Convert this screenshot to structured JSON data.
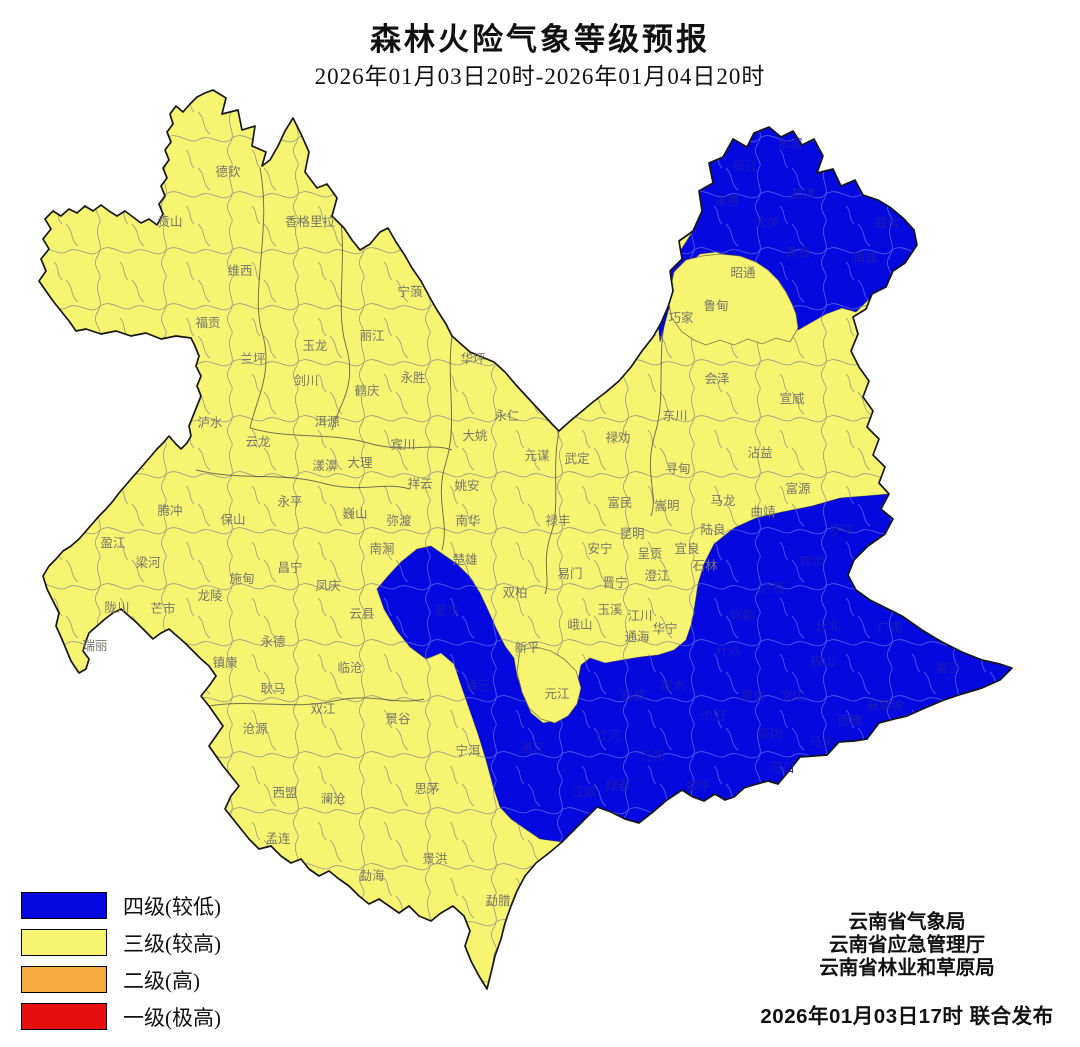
{
  "header": {
    "title": "森林火险气象等级预报",
    "subtitle": "2026年01月03日20时-2026年01月04日20时"
  },
  "legend": {
    "items": [
      {
        "label": "四级(较低)",
        "color": "#0509E0"
      },
      {
        "label": "三级(较高)",
        "color": "#F7F472"
      },
      {
        "label": "二级(高)",
        "color": "#F5A93F"
      },
      {
        "label": "一级(极高)",
        "color": "#E60E0E"
      }
    ]
  },
  "footer": {
    "agencies": [
      "云南省气象局",
      "云南省应急管理厅",
      "云南省林业和草原局"
    ],
    "issued": "2026年01月03日17时  联合发布"
  },
  "colors": {
    "level4_blue": "#0509E0",
    "level3_yellow": "#F7F472",
    "level2_orange": "#F5A93F",
    "level1_red": "#E60E0E",
    "outline": "#161616",
    "county_line": "#9a9a85",
    "county_line_blue": "#5b6ae8",
    "label_yellow": "#75786a",
    "label_blue": "#1c1cb4"
  },
  "map": {
    "region_name": "云南省",
    "labels": [
      [
        "德钦",
        228,
        176,
        "y"
      ],
      [
        "贡山",
        170,
        226,
        "y"
      ],
      [
        "香格里拉",
        310,
        226,
        "y"
      ],
      [
        "维西",
        240,
        275,
        "y"
      ],
      [
        "福贡",
        208,
        327,
        "y"
      ],
      [
        "兰坪",
        253,
        363,
        "y"
      ],
      [
        "玉龙",
        315,
        350,
        "y"
      ],
      [
        "丽江",
        372,
        340,
        "y"
      ],
      [
        "宁蒗",
        410,
        296,
        "y"
      ],
      [
        "永胜",
        413,
        382,
        "y"
      ],
      [
        "华坪",
        473,
        363,
        "y"
      ],
      [
        "泸水",
        210,
        427,
        "y"
      ],
      [
        "云龙",
        258,
        446,
        "y"
      ],
      [
        "剑川",
        306,
        385,
        "y"
      ],
      [
        "鹤庆",
        367,
        395,
        "y"
      ],
      [
        "洱源",
        327,
        426,
        "y"
      ],
      [
        "宾川",
        403,
        449,
        "y"
      ],
      [
        "大姚",
        475,
        440,
        "y"
      ],
      [
        "永仁",
        507,
        420,
        "y"
      ],
      [
        "漾濞",
        325,
        470,
        "y"
      ],
      [
        "大理",
        360,
        467,
        "y"
      ],
      [
        "祥云",
        420,
        488,
        "y"
      ],
      [
        "姚安",
        467,
        490,
        "y"
      ],
      [
        "永平",
        290,
        506,
        "y"
      ],
      [
        "巍山",
        355,
        518,
        "y"
      ],
      [
        "弥渡",
        399,
        525,
        "y"
      ],
      [
        "南华",
        468,
        525,
        "y"
      ],
      [
        "腾冲",
        170,
        515,
        "y"
      ],
      [
        "保山",
        233,
        524,
        "y"
      ],
      [
        "南涧",
        382,
        553,
        "y"
      ],
      [
        "昌宁",
        290,
        572,
        "y"
      ],
      [
        "施甸",
        242,
        583,
        "y"
      ],
      [
        "凤庆",
        328,
        590,
        "y"
      ],
      [
        "龙陵",
        210,
        600,
        "y"
      ],
      [
        "云县",
        362,
        618,
        "y"
      ],
      [
        "永德",
        273,
        646,
        "y"
      ],
      [
        "元谋",
        537,
        460,
        "y"
      ],
      [
        "武定",
        577,
        463,
        "y"
      ],
      [
        "禄劝",
        618,
        442,
        "y"
      ],
      [
        "东川",
        675,
        420,
        "y"
      ],
      [
        "寻甸",
        678,
        473,
        "y"
      ],
      [
        "会泽",
        717,
        383,
        "y"
      ],
      [
        "宣威",
        792,
        403,
        "y"
      ],
      [
        "沾益",
        760,
        457,
        "y"
      ],
      [
        "富源",
        798,
        493,
        "y"
      ],
      [
        "马龙",
        723,
        505,
        "y"
      ],
      [
        "富民",
        620,
        507,
        "y"
      ],
      [
        "嵩明",
        667,
        510,
        "y"
      ],
      [
        "曲靖",
        763,
        516,
        "y"
      ],
      [
        "陆良",
        713,
        534,
        "y"
      ],
      [
        "昆明",
        632,
        538,
        "y"
      ],
      [
        "安宁",
        600,
        553,
        "y"
      ],
      [
        "呈贡",
        650,
        558,
        "y"
      ],
      [
        "宜良",
        687,
        553,
        "y"
      ],
      [
        "石林",
        705,
        570,
        "y"
      ],
      [
        "澄江",
        657,
        580,
        "y"
      ],
      [
        "晋宁",
        615,
        587,
        "y"
      ],
      [
        "禄丰",
        558,
        525,
        "y"
      ],
      [
        "易门",
        570,
        578,
        "y"
      ],
      [
        "双柏",
        515,
        597,
        "y"
      ],
      [
        "楚雄",
        465,
        564,
        "y"
      ],
      [
        "玉溪",
        610,
        614,
        "y"
      ],
      [
        "江川",
        640,
        620,
        "y"
      ],
      [
        "峨山",
        580,
        629,
        "y"
      ],
      [
        "通海",
        637,
        641,
        "y"
      ],
      [
        "华宁",
        665,
        633,
        "y"
      ],
      [
        "新平",
        527,
        652,
        "y"
      ],
      [
        "元江",
        557,
        698,
        "y"
      ],
      [
        "昭通",
        743,
        277,
        "y"
      ],
      [
        "鲁甸",
        716,
        310,
        "y"
      ],
      [
        "巧家",
        681,
        322,
        "y"
      ],
      [
        "盈江",
        113,
        547,
        "y"
      ],
      [
        "梁河",
        148,
        567,
        "y"
      ],
      [
        "陇川",
        117,
        612,
        "y"
      ],
      [
        "芒市",
        163,
        613,
        "y"
      ],
      [
        "瑞丽",
        95,
        650,
        "y"
      ],
      [
        "镇康",
        225,
        667,
        "y"
      ],
      [
        "耿马",
        273,
        693,
        "y"
      ],
      [
        "临沧",
        350,
        672,
        "y"
      ],
      [
        "双江",
        323,
        713,
        "y"
      ],
      [
        "沧源",
        255,
        733,
        "y"
      ],
      [
        "景谷",
        398,
        723,
        "y"
      ],
      [
        "宁洱",
        468,
        755,
        "y"
      ],
      [
        "思茅",
        427,
        793,
        "y"
      ],
      [
        "澜沧",
        333,
        803,
        "y"
      ],
      [
        "西盟",
        285,
        797,
        "y"
      ],
      [
        "孟连",
        278,
        843,
        "y"
      ],
      [
        "勐海",
        372,
        880,
        "y"
      ],
      [
        "景洪",
        435,
        863,
        "y"
      ],
      [
        "勐腊",
        498,
        905,
        "y"
      ],
      [
        "绥江",
        745,
        170,
        "b"
      ],
      [
        "水富",
        790,
        148,
        "b"
      ],
      [
        "永善",
        727,
        205,
        "b"
      ],
      [
        "盐津",
        803,
        198,
        "b"
      ],
      [
        "大关",
        767,
        227,
        "b"
      ],
      [
        "威信",
        887,
        227,
        "b"
      ],
      [
        "彝良",
        798,
        257,
        "b"
      ],
      [
        "镇雄",
        865,
        262,
        "b"
      ],
      [
        "景东",
        447,
        615,
        "b"
      ],
      [
        "镇沅",
        477,
        690,
        "b"
      ],
      [
        "墨江",
        533,
        752,
        "b"
      ],
      [
        "江城",
        584,
        796,
        "b"
      ],
      [
        "罗平",
        842,
        535,
        "b"
      ],
      [
        "师宗",
        812,
        566,
        "b"
      ],
      [
        "泸西",
        772,
        592,
        "b"
      ],
      [
        "弥勒",
        742,
        620,
        "b"
      ],
      [
        "丘北",
        828,
        630,
        "b"
      ],
      [
        "广南",
        890,
        632,
        "b"
      ],
      [
        "富宁",
        948,
        672,
        "b"
      ],
      [
        "砚山",
        823,
        666,
        "b"
      ],
      [
        "文山",
        793,
        700,
        "b"
      ],
      [
        "西畴",
        850,
        725,
        "b"
      ],
      [
        "麻栗坡",
        885,
        710,
        "b"
      ],
      [
        "马关",
        822,
        746,
        "b"
      ],
      [
        "开远",
        728,
        654,
        "b"
      ],
      [
        "蒙自",
        753,
        700,
        "b"
      ],
      [
        "个旧",
        713,
        720,
        "b"
      ],
      [
        "屏边",
        770,
        738,
        "b"
      ],
      [
        "河口",
        782,
        772,
        "b"
      ],
      [
        "建水",
        673,
        690,
        "b"
      ],
      [
        "石屏",
        633,
        700,
        "b"
      ],
      [
        "红河",
        608,
        740,
        "b"
      ],
      [
        "元阳",
        653,
        760,
        "b"
      ],
      [
        "金平",
        698,
        790,
        "b"
      ],
      [
        "绿春",
        618,
        790,
        "b"
      ]
    ]
  }
}
